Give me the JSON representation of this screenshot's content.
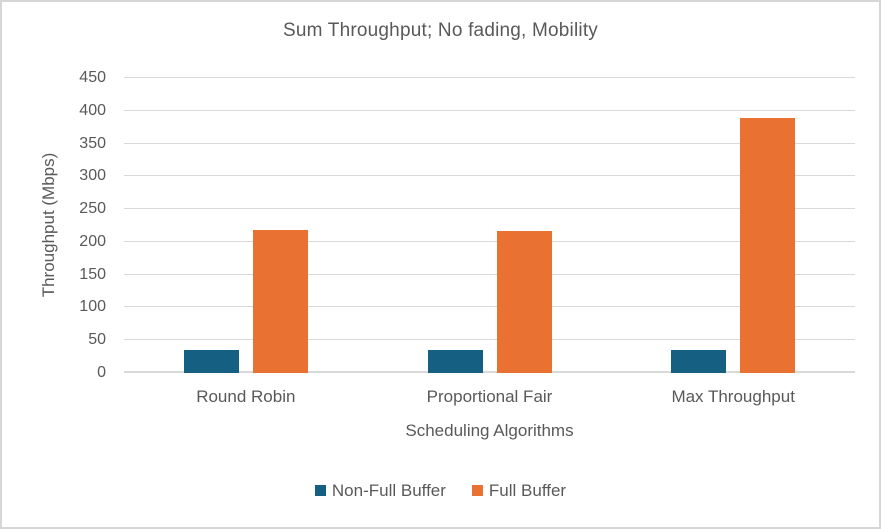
{
  "chart_data": {
    "type": "bar",
    "title": "Sum Throughput; No fading, Mobility",
    "categories": [
      "Round Robin",
      "Proportional Fair",
      "Max Throughput"
    ],
    "series": [
      {
        "name": "Non-Full Buffer",
        "color": "#156082",
        "values": [
          35,
          35,
          35
        ]
      },
      {
        "name": "Full Buffer",
        "color": "#E97132",
        "values": [
          218,
          217,
          389
        ]
      }
    ],
    "xlabel": "Scheduling Algorithms",
    "ylabel": "Throughput (Mbps)",
    "ylim": [
      0,
      450
    ],
    "yticks": [
      0,
      50,
      100,
      150,
      200,
      250,
      300,
      350,
      400,
      450
    ],
    "grid": "horizontal",
    "legend_position": "bottom"
  },
  "colors": {
    "text": "#595959",
    "gridline": "#D9D9D9",
    "background": "#FFFFFF",
    "border": "#D6D6D6"
  }
}
